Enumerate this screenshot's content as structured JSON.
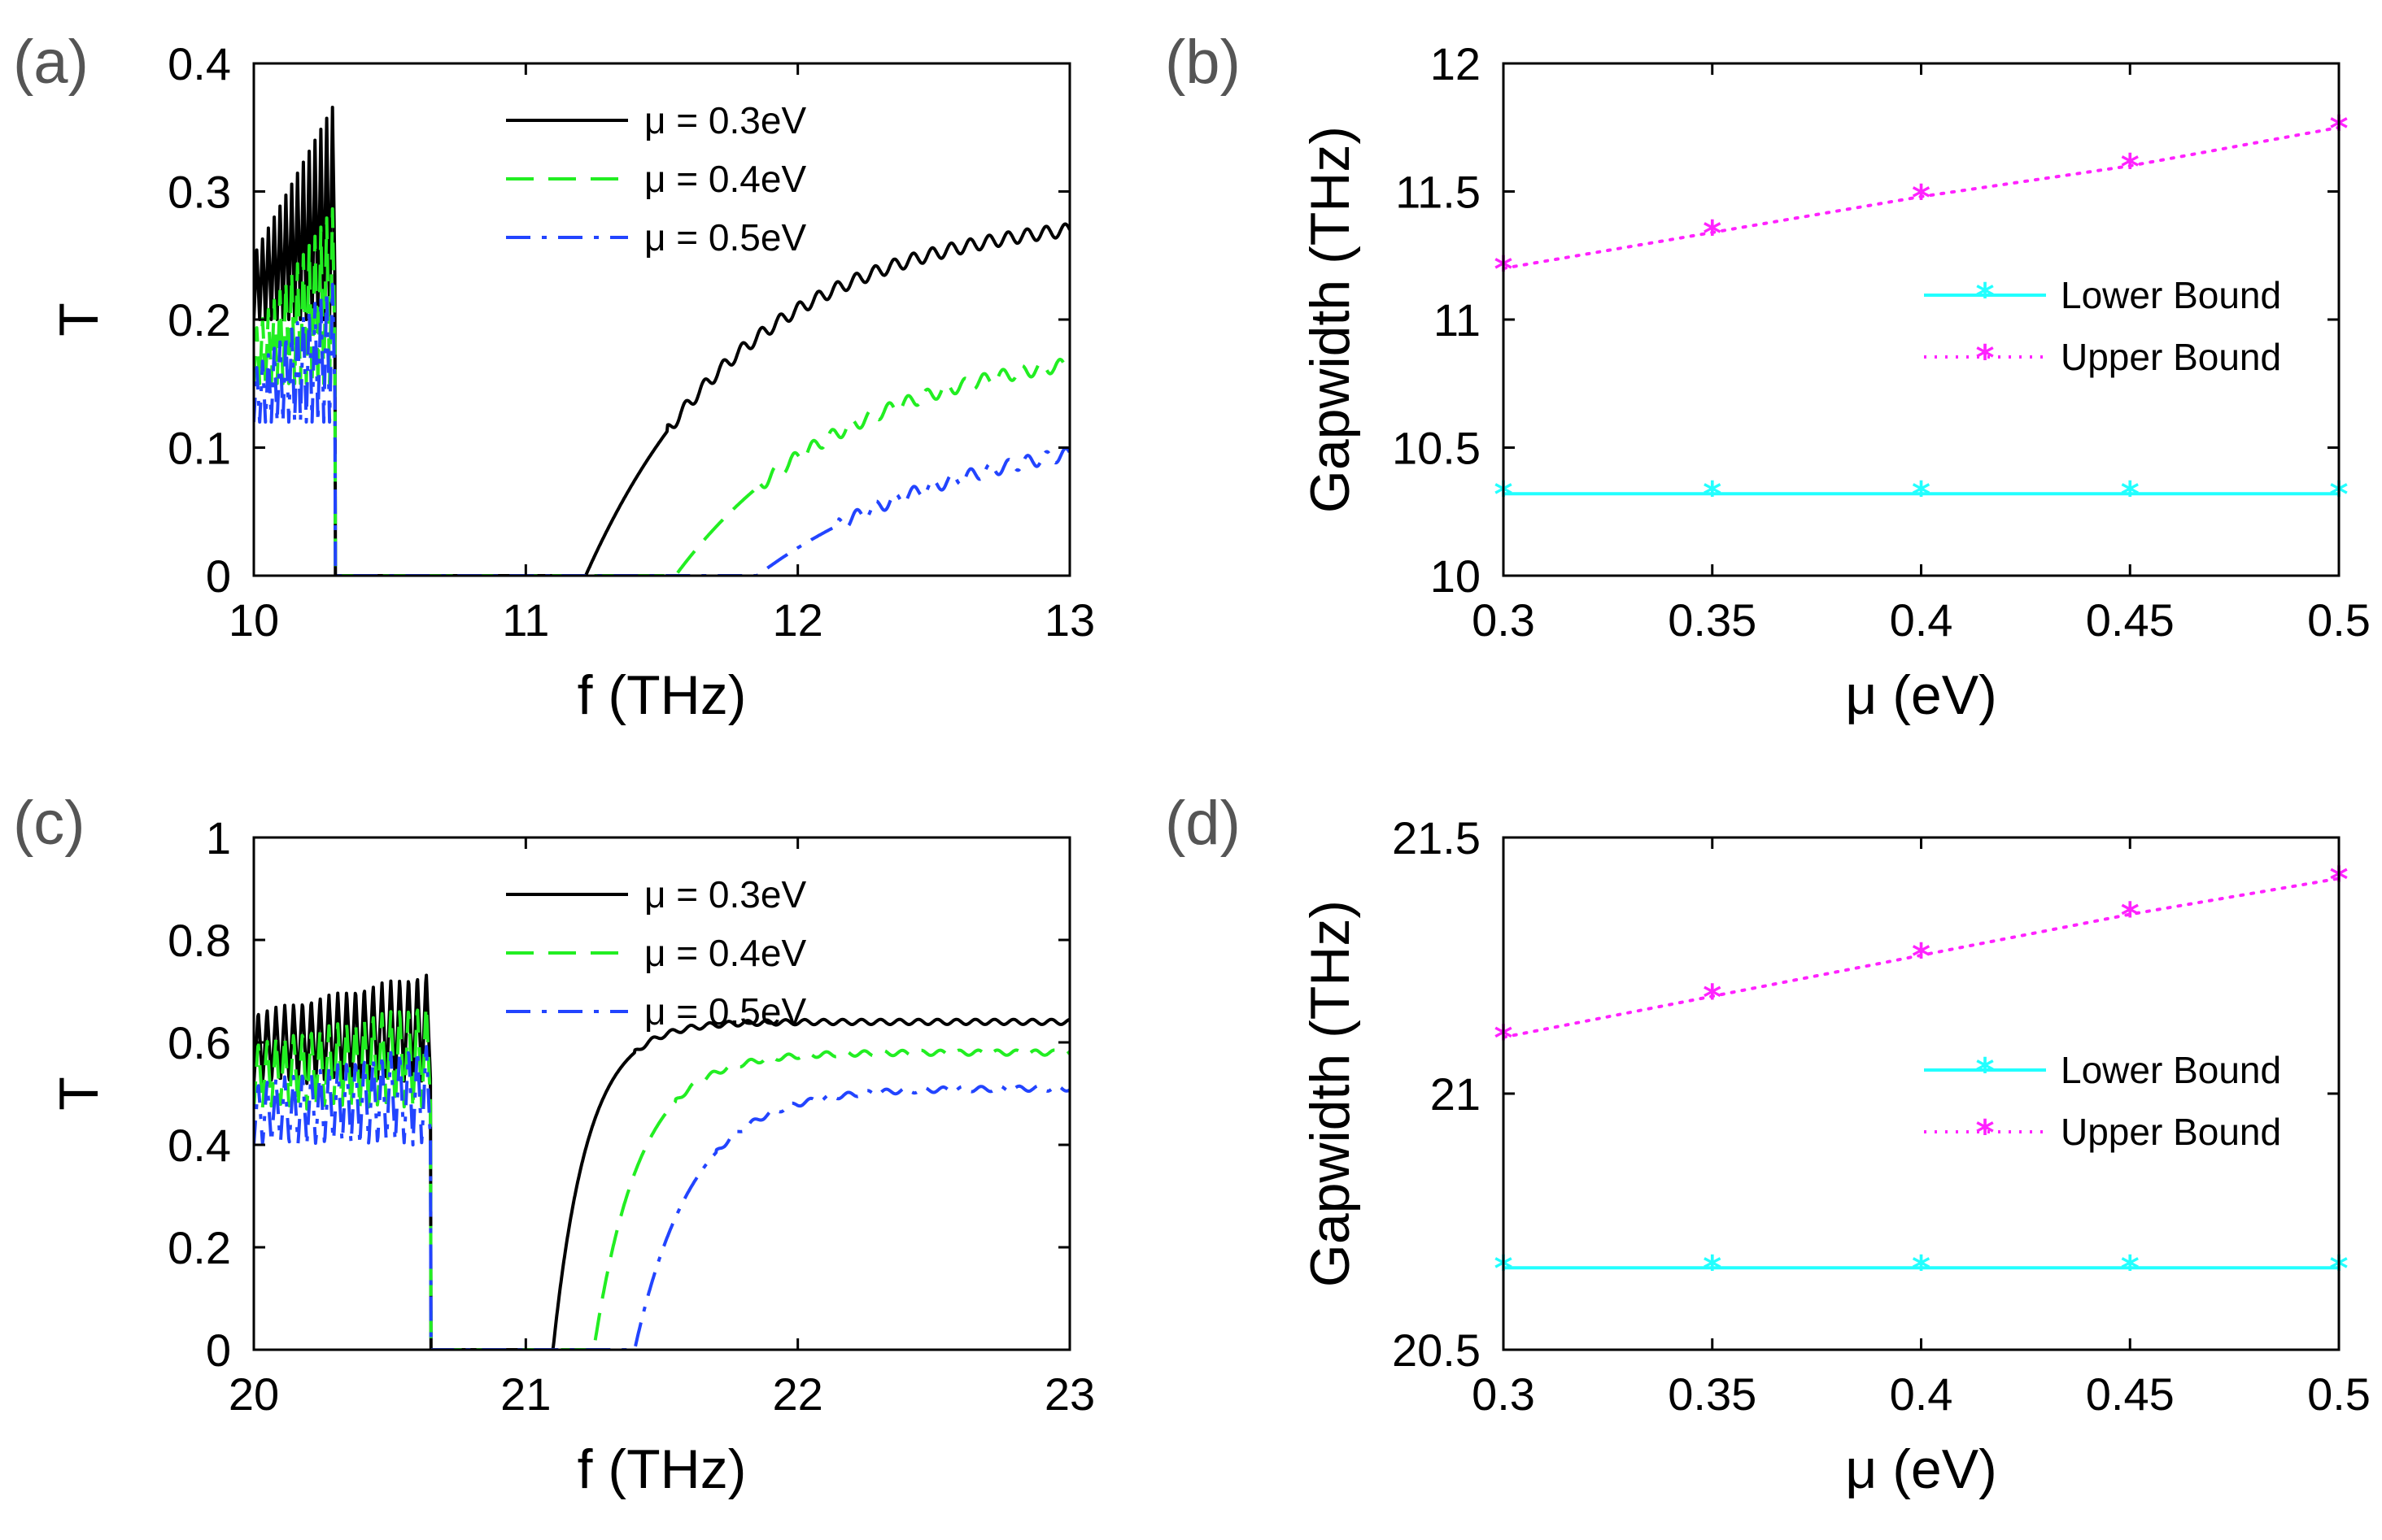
{
  "colors": {
    "black": "#000000",
    "green": "#22ee22",
    "blue": "#2244ff",
    "cyan": "#22ffff",
    "magenta": "#ff22ff"
  },
  "chart_data": [
    {
      "id": "a",
      "panel_label": "(a)",
      "type": "line",
      "xlabel": "f (THz)",
      "ylabel": "T",
      "xlim": [
        10,
        13
      ],
      "ylim": [
        0,
        0.4
      ],
      "xticks": [
        10,
        11,
        12,
        13
      ],
      "xtick_labels": [
        "10",
        "11",
        "12",
        "13"
      ],
      "yticks": [
        0,
        0.1,
        0.2,
        0.3,
        0.4
      ],
      "ytick_labels": [
        "0",
        "0.1",
        "0.2",
        "0.3",
        "0.4"
      ],
      "legend_position": "top-center",
      "gap_edge_low": 10.3,
      "series": [
        {
          "name": "μ = 0.3eV",
          "color": "#000000",
          "style": "solid",
          "osc_low": 0.2,
          "osc_high_start": 0.25,
          "osc_high_end": 0.37,
          "gap_high": 11.22,
          "recovery_end": 0.27,
          "recovery_rate": 1.0,
          "osc_count": 14
        },
        {
          "name": "μ = 0.4eV",
          "color": "#22ee22",
          "style": "dashed",
          "osc_low": 0.15,
          "osc_high_start": 0.19,
          "osc_high_end": 0.29,
          "gap_high": 11.55,
          "recovery_end": 0.165,
          "recovery_rate": 0.75,
          "osc_count": 14
        },
        {
          "name": "μ = 0.5eV",
          "color": "#2244ff",
          "style": "dashdot",
          "osc_low": 0.12,
          "osc_high_start": 0.16,
          "osc_high_end": 0.23,
          "gap_high": 11.85,
          "recovery_end": 0.095,
          "recovery_rate": 0.5,
          "osc_count": 14
        }
      ]
    },
    {
      "id": "b",
      "panel_label": "(b)",
      "type": "line",
      "xlabel": "μ (eV)",
      "ylabel": "Gapwidth (THz)",
      "xlim": [
        0.3,
        0.5
      ],
      "ylim": [
        10,
        12
      ],
      "xticks": [
        0.3,
        0.35,
        0.4,
        0.45,
        0.5
      ],
      "xtick_labels": [
        "0.3",
        "0.35",
        "0.4",
        "0.45",
        "0.5"
      ],
      "yticks": [
        10,
        10.5,
        11,
        11.5,
        12
      ],
      "ytick_labels": [
        "10",
        "10.5",
        "11",
        "11.5",
        "12"
      ],
      "legend_position": "right",
      "x": [
        0.3,
        0.35,
        0.4,
        0.45,
        0.5
      ],
      "series": [
        {
          "name": "Lower Bound",
          "color": "#22ffff",
          "style": "solid",
          "values": [
            10.32,
            10.32,
            10.32,
            10.32,
            10.32
          ]
        },
        {
          "name": "Upper Bound",
          "color": "#ff22ff",
          "style": "dotted",
          "values": [
            11.2,
            11.34,
            11.48,
            11.6,
            11.75
          ]
        }
      ]
    },
    {
      "id": "c",
      "panel_label": "(c)",
      "type": "line",
      "xlabel": "f (THz)",
      "ylabel": "T",
      "xlim": [
        20,
        23
      ],
      "ylim": [
        0,
        1
      ],
      "xticks": [
        20,
        21,
        22,
        23
      ],
      "xtick_labels": [
        "20",
        "21",
        "22",
        "23"
      ],
      "yticks": [
        0,
        0.2,
        0.4,
        0.6,
        0.8,
        1
      ],
      "ytick_labels": [
        "0",
        "0.2",
        "0.4",
        "0.6",
        "0.8",
        "1"
      ],
      "legend_position": "top-center",
      "gap_edge_low": 20.65,
      "series": [
        {
          "name": "μ = 0.3eV",
          "color": "#000000",
          "style": "solid",
          "osc_low": 0.52,
          "osc_high_start": 0.66,
          "osc_high_end": 0.74,
          "gap_high": 21.1,
          "recovery_end": 0.64,
          "recovery_rate": 5.0,
          "osc_count": 20
        },
        {
          "name": "μ = 0.4eV",
          "color": "#22ee22",
          "style": "dashed",
          "osc_low": 0.47,
          "osc_high_start": 0.6,
          "osc_high_end": 0.68,
          "gap_high": 21.25,
          "recovery_end": 0.58,
          "recovery_rate": 3.5,
          "osc_count": 20
        },
        {
          "name": "μ = 0.5eV",
          "color": "#2244ff",
          "style": "dashdot",
          "osc_low": 0.4,
          "osc_high_start": 0.52,
          "osc_high_end": 0.6,
          "gap_high": 21.4,
          "recovery_end": 0.51,
          "recovery_rate": 2.5,
          "osc_count": 20
        }
      ]
    },
    {
      "id": "d",
      "panel_label": "(d)",
      "type": "line",
      "xlabel": "μ (eV)",
      "ylabel": "Gapwidth (THz)",
      "xlim": [
        0.3,
        0.5
      ],
      "ylim": [
        20.5,
        21.5
      ],
      "xticks": [
        0.3,
        0.35,
        0.4,
        0.45,
        0.5
      ],
      "xtick_labels": [
        "0.3",
        "0.35",
        "0.4",
        "0.45",
        "0.5"
      ],
      "yticks": [
        20.5,
        21,
        21.5
      ],
      "ytick_labels": [
        "20.5",
        "21",
        "21.5"
      ],
      "legend_position": "right",
      "x": [
        0.3,
        0.35,
        0.4,
        0.45,
        0.5
      ],
      "series": [
        {
          "name": "Lower Bound",
          "color": "#22ffff",
          "style": "solid",
          "values": [
            20.66,
            20.66,
            20.66,
            20.66,
            20.66
          ]
        },
        {
          "name": "Upper Bound",
          "color": "#ff22ff",
          "style": "dotted",
          "values": [
            21.11,
            21.19,
            21.27,
            21.35,
            21.42
          ]
        }
      ]
    }
  ]
}
